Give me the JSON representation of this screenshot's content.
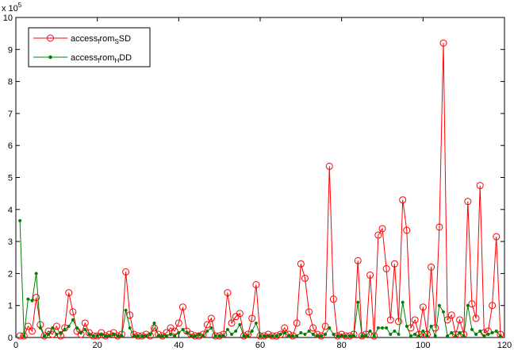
{
  "chart_data": {
    "type": "line",
    "title": "",
    "xlabel": "",
    "ylabel": "",
    "exponent_label": "x 10^5",
    "exponent_base": "x 10",
    "exponent_power": "5",
    "xlim": [
      0,
      120
    ],
    "ylim": [
      0,
      10
    ],
    "xticks": [
      0,
      20,
      40,
      60,
      80,
      100,
      120
    ],
    "yticks": [
      0,
      1,
      2,
      3,
      4,
      5,
      6,
      7,
      8,
      9,
      10
    ],
    "grid": false,
    "legend_placement": "top-left",
    "legend": [
      {
        "text_main": "access",
        "text_sub": "f",
        "text_mid": "rom",
        "text_sub2": "S",
        "text_end": "SD"
      },
      {
        "text_main": "access",
        "text_sub": "f",
        "text_mid": "rom",
        "text_sub2": "H",
        "text_end": "DD"
      }
    ],
    "series": [
      {
        "name": "access_from_SSD",
        "color": "#ff0000",
        "marker": "circle",
        "x": [
          1,
          2,
          3,
          4,
          5,
          6,
          7,
          8,
          9,
          10,
          11,
          12,
          13,
          14,
          15,
          16,
          17,
          18,
          19,
          20,
          21,
          22,
          23,
          24,
          25,
          26,
          27,
          28,
          29,
          30,
          31,
          32,
          33,
          34,
          35,
          36,
          37,
          38,
          39,
          40,
          41,
          42,
          43,
          44,
          45,
          46,
          47,
          48,
          49,
          50,
          51,
          52,
          53,
          54,
          55,
          56,
          57,
          58,
          59,
          60,
          61,
          62,
          63,
          64,
          65,
          66,
          67,
          68,
          69,
          70,
          71,
          72,
          73,
          74,
          75,
          76,
          77,
          78,
          79,
          80,
          81,
          82,
          83,
          84,
          85,
          86,
          87,
          88,
          89,
          90,
          91,
          92,
          93,
          94,
          95,
          96,
          97,
          98,
          99,
          100,
          101,
          102,
          103,
          104,
          105,
          106,
          107,
          108,
          109,
          110,
          111,
          112,
          113,
          114,
          115,
          116,
          117,
          118,
          119
        ],
        "values": [
          0.05,
          0.05,
          0.35,
          0.2,
          1.25,
          0.4,
          0.05,
          0.2,
          0.1,
          0.35,
          0.05,
          0.3,
          1.4,
          0.8,
          0.2,
          0.1,
          0.45,
          0.15,
          0.05,
          0.05,
          0.15,
          0.05,
          0.1,
          0.15,
          0.05,
          0.1,
          2.05,
          0.7,
          0.1,
          0.05,
          0.05,
          0.1,
          0.05,
          0.3,
          0.1,
          0.05,
          0.15,
          0.3,
          0.2,
          0.45,
          0.95,
          0.2,
          0.1,
          0.05,
          0.05,
          0.1,
          0.4,
          0.6,
          0.05,
          0.05,
          0.1,
          1.4,
          0.45,
          0.65,
          0.75,
          0.05,
          0.1,
          0.6,
          1.65,
          0.05,
          0.05,
          0.1,
          0.05,
          0.05,
          0.1,
          0.3,
          0.1,
          0.05,
          0.45,
          2.3,
          1.85,
          0.8,
          0.3,
          0.1,
          0.05,
          0.35,
          5.35,
          1.2,
          0.05,
          0.1,
          0.05,
          0.05,
          0.1,
          2.4,
          0.05,
          0.1,
          1.95,
          0.05,
          3.2,
          3.4,
          2.15,
          0.55,
          2.3,
          0.5,
          4.3,
          3.35,
          0.3,
          0.55,
          0.1,
          0.95,
          0.1,
          2.2,
          0.3,
          3.45,
          9.2,
          0.55,
          0.7,
          0.1,
          0.55,
          0.1,
          4.25,
          1.05,
          0.6,
          4.75,
          0.15,
          0.2,
          1.0,
          3.15,
          0.1
        ]
      },
      {
        "name": "access_from_HDD",
        "color": "#008000",
        "marker": "dot",
        "x": [
          1,
          2,
          3,
          4,
          5,
          6,
          7,
          8,
          9,
          10,
          11,
          12,
          13,
          14,
          15,
          16,
          17,
          18,
          19,
          20,
          21,
          22,
          23,
          24,
          25,
          26,
          27,
          28,
          29,
          30,
          31,
          32,
          33,
          34,
          35,
          36,
          37,
          38,
          39,
          40,
          41,
          42,
          43,
          44,
          45,
          46,
          47,
          48,
          49,
          50,
          51,
          52,
          53,
          54,
          55,
          56,
          57,
          58,
          59,
          60,
          61,
          62,
          63,
          64,
          65,
          66,
          67,
          68,
          69,
          70,
          71,
          72,
          73,
          74,
          75,
          76,
          77,
          78,
          79,
          80,
          81,
          82,
          83,
          84,
          85,
          86,
          87,
          88,
          89,
          90,
          91,
          92,
          93,
          94,
          95,
          96,
          97,
          98,
          99,
          100,
          101,
          102,
          103,
          104,
          105,
          106,
          107,
          108,
          109,
          110,
          111,
          112,
          113,
          114,
          115,
          116,
          117,
          118,
          119
        ],
        "values": [
          3.65,
          0.05,
          1.2,
          1.15,
          2.0,
          0.3,
          0.05,
          0.1,
          0.3,
          0.1,
          0.15,
          0.25,
          0.35,
          0.55,
          0.3,
          0.15,
          0.25,
          0.1,
          0.05,
          0.05,
          0.1,
          0.05,
          0.05,
          0.1,
          0.05,
          0.05,
          0.85,
          0.3,
          0.05,
          0.05,
          0.05,
          0.05,
          0.1,
          0.45,
          0.05,
          0.05,
          0.05,
          0.1,
          0.05,
          0.15,
          0.25,
          0.15,
          0.05,
          0.05,
          0.1,
          0.05,
          0.2,
          0.3,
          0.05,
          0.05,
          0.05,
          0.25,
          0.1,
          0.2,
          0.4,
          0.05,
          0.05,
          0.2,
          0.45,
          0.05,
          0.05,
          0.05,
          0.05,
          0.05,
          0.1,
          0.15,
          0.05,
          0.05,
          0.05,
          0.15,
          0.1,
          0.2,
          0.1,
          0.05,
          0.05,
          0.1,
          0.3,
          0.1,
          0.05,
          0.05,
          0.05,
          0.05,
          0.05,
          1.1,
          0.05,
          0.05,
          0.2,
          0.05,
          0.3,
          0.3,
          0.3,
          0.1,
          0.2,
          0.1,
          1.1,
          0.35,
          0.05,
          0.1,
          0.05,
          0.2,
          0.05,
          0.35,
          0.05,
          1.0,
          0.8,
          0.05,
          0.15,
          0.05,
          0.15,
          0.05,
          1.0,
          0.25,
          0.1,
          0.2,
          0.05,
          0.1,
          0.15,
          0.2,
          0.05
        ]
      }
    ]
  }
}
